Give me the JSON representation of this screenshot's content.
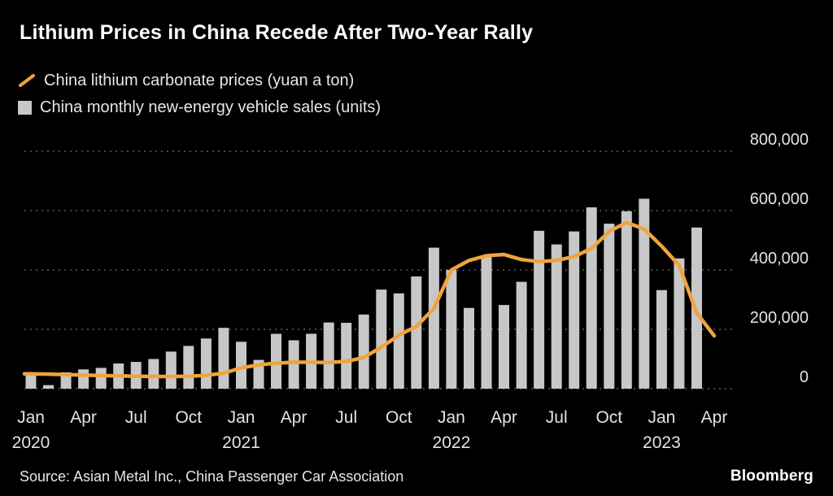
{
  "title": "Lithium Prices in China Recede After Two-Year Rally",
  "legend": [
    {
      "label": "China lithium carbonate prices (yuan a ton)",
      "swatch": "orange-diagonal-line"
    },
    {
      "label": "China monthly new-energy vehicle sales (units)",
      "swatch": "gray-square"
    }
  ],
  "source": "Source: Asian Metal Inc., China Passenger Car Association",
  "logo": "Bloomberg",
  "colors": {
    "background": "#000000",
    "title_text": "#ffffff",
    "text": "#e3e3e3",
    "grid": "#5f5f5f",
    "line": "#f1a33b",
    "bar": "#c7c7c7"
  },
  "chart_data": {
    "type": "combo",
    "title": "Lithium Prices in China Recede After Two-Year Rally",
    "x": [
      "Jan 2020",
      "Feb 2020",
      "Mar 2020",
      "Apr 2020",
      "May 2020",
      "Jun 2020",
      "Jul 2020",
      "Aug 2020",
      "Sep 2020",
      "Oct 2020",
      "Nov 2020",
      "Dec 2020",
      "Jan 2021",
      "Feb 2021",
      "Mar 2021",
      "Apr 2021",
      "May 2021",
      "Jun 2021",
      "Jul 2021",
      "Aug 2021",
      "Sep 2021",
      "Oct 2021",
      "Nov 2021",
      "Dec 2021",
      "Jan 2022",
      "Feb 2022",
      "Mar 2022",
      "Apr 2022",
      "May 2022",
      "Jun 2022",
      "Jul 2022",
      "Aug 2022",
      "Sep 2022",
      "Oct 2022",
      "Nov 2022",
      "Dec 2022",
      "Jan 2023",
      "Feb 2023",
      "Mar 2023",
      "Apr 2023"
    ],
    "series": [
      {
        "name": "China monthly new-energy vehicle sales (units)",
        "type": "bar",
        "color": "#c7c7c7",
        "values": [
          45000,
          12000,
          55000,
          65000,
          70000,
          85000,
          90000,
          100000,
          125000,
          144000,
          169000,
          205000,
          158000,
          97000,
          185000,
          163000,
          185000,
          223000,
          222000,
          250000,
          334000,
          321000,
          378000,
          475000,
          400000,
          272000,
          445000,
          282000,
          360000,
          532000,
          486000,
          530000,
          611000,
          556000,
          598000,
          640000,
          332000,
          439000,
          543000,
          null
        ]
      },
      {
        "name": "China lithium carbonate prices (yuan a ton)",
        "type": "line",
        "color": "#f1a33b",
        "values": [
          50000,
          49000,
          47000,
          46000,
          44000,
          43000,
          42000,
          41000,
          41000,
          42000,
          45000,
          52000,
          70000,
          80000,
          86000,
          89000,
          89000,
          88000,
          92000,
          105000,
          140000,
          180000,
          210000,
          270000,
          400000,
          432000,
          448000,
          452000,
          435000,
          428000,
          432000,
          445000,
          472000,
          530000,
          560000,
          538000,
          480000,
          415000,
          255000,
          178000
        ]
      }
    ],
    "ylim": [
      0,
      800000
    ],
    "yticks": [
      0,
      200000,
      400000,
      600000,
      800000
    ],
    "ytick_labels": [
      "0",
      "200,000",
      "400,000",
      "600,000",
      "800,000"
    ],
    "y_axis_side": "right",
    "xtick_months": [
      {
        "i": 0,
        "label": "Jan"
      },
      {
        "i": 3,
        "label": "Apr"
      },
      {
        "i": 6,
        "label": "Jul"
      },
      {
        "i": 9,
        "label": "Oct"
      },
      {
        "i": 12,
        "label": "Jan"
      },
      {
        "i": 15,
        "label": "Apr"
      },
      {
        "i": 18,
        "label": "Jul"
      },
      {
        "i": 21,
        "label": "Oct"
      },
      {
        "i": 24,
        "label": "Jan"
      },
      {
        "i": 27,
        "label": "Apr"
      },
      {
        "i": 30,
        "label": "Jul"
      },
      {
        "i": 33,
        "label": "Oct"
      },
      {
        "i": 36,
        "label": "Jan"
      },
      {
        "i": 39,
        "label": "Apr"
      }
    ],
    "xtick_years": [
      {
        "i": 0,
        "label": "2020"
      },
      {
        "i": 12,
        "label": "2021"
      },
      {
        "i": 24,
        "label": "2022"
      },
      {
        "i": 36,
        "label": "2023"
      }
    ],
    "grid": "horizontal-dotted",
    "legend_position": "top-left"
  }
}
